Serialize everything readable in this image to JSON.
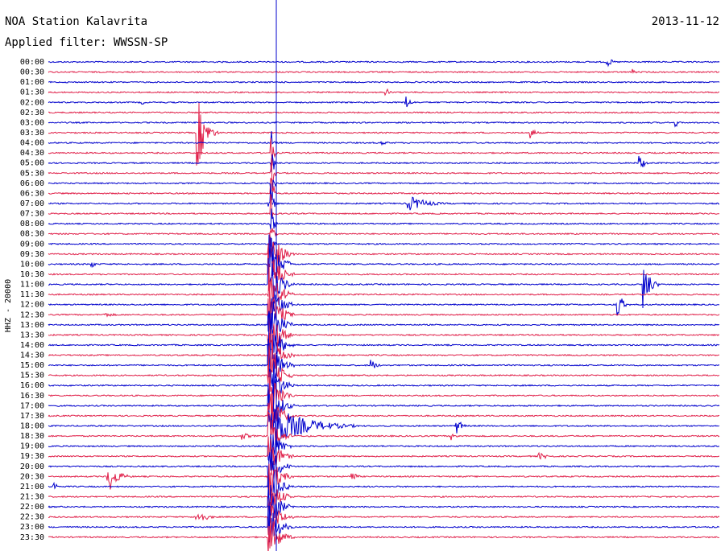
{
  "header": {
    "title": "NOA Station Kalavrita",
    "filter": "Applied filter: WWSSN-SP",
    "date": "2013-11-12"
  },
  "axis_label": "HHZ - 20000",
  "rows": [
    "00:00",
    "00:30",
    "01:00",
    "01:30",
    "02:00",
    "02:30",
    "03:00",
    "03:30",
    "04:00",
    "04:30",
    "05:00",
    "05:30",
    "06:00",
    "06:30",
    "07:00",
    "07:30",
    "08:00",
    "08:30",
    "09:00",
    "09:30",
    "10:00",
    "10:30",
    "11:00",
    "11:30",
    "12:00",
    "12:30",
    "13:00",
    "13:30",
    "14:00",
    "14:30",
    "15:00",
    "15:30",
    "16:00",
    "16:30",
    "17:00",
    "17:30",
    "18:00",
    "18:30",
    "19:00",
    "19:30",
    "20:00",
    "20:30",
    "21:00",
    "21:30",
    "22:00",
    "22:30",
    "23:00",
    "23:30"
  ]
}
